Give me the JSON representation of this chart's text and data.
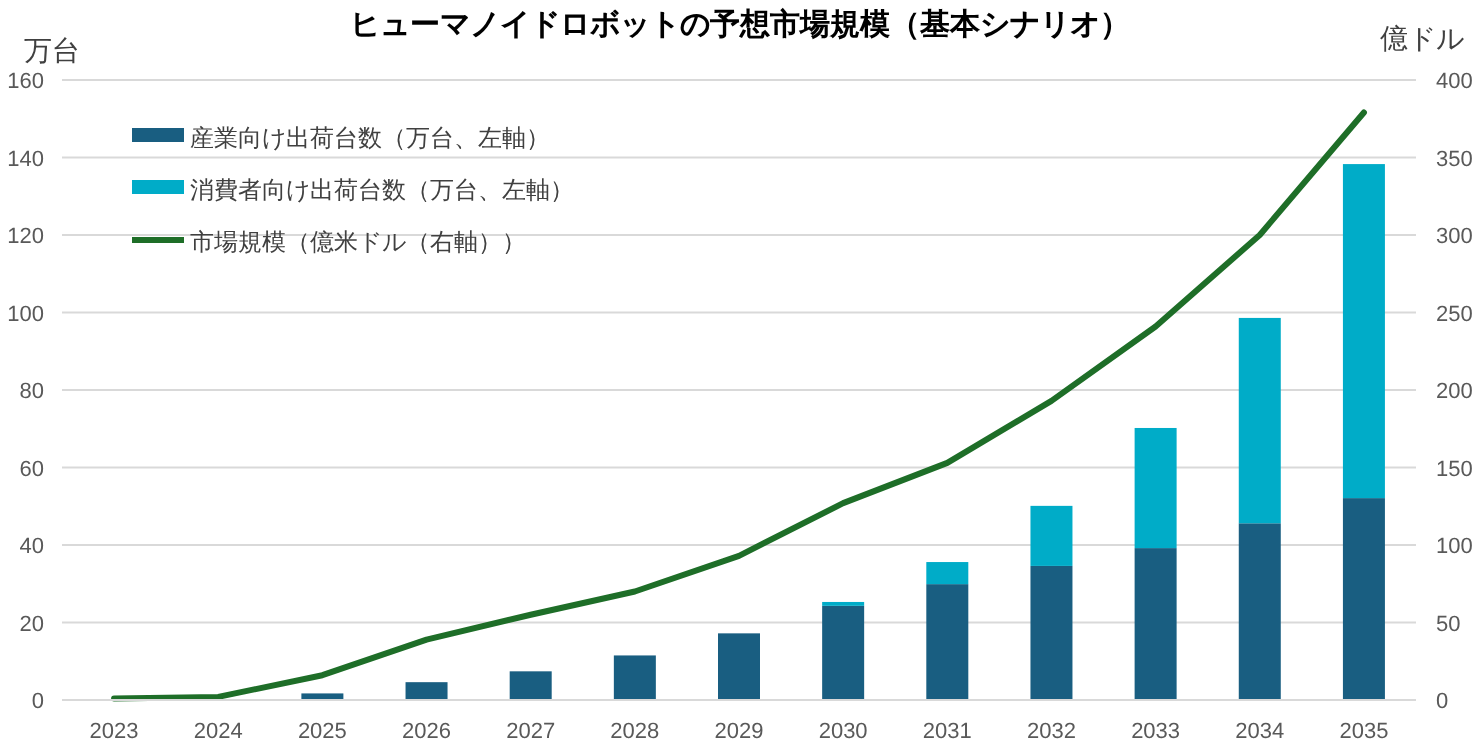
{
  "chart_data": {
    "type": "bar",
    "title": "ヒューマノイドロボットの予想市場規模（基本シナリオ）",
    "ylabel": "万台",
    "y2label": "億ドル",
    "categories": [
      "2023",
      "2024",
      "2025",
      "2026",
      "2027",
      "2028",
      "2029",
      "2030",
      "2031",
      "2032",
      "2033",
      "2034",
      "2035"
    ],
    "stacked": true,
    "series": [
      {
        "name": "産業向け出荷台数（万台、左軸）",
        "color": "#195e81",
        "values": [
          null,
          null,
          1.7,
          4.6,
          7.4,
          11.5,
          17.2,
          24.3,
          29.9,
          34.6,
          39.2,
          45.6,
          52.1
        ]
      },
      {
        "name": "消費者向け出荷台数（万台、左軸）",
        "color": "#00acc8",
        "values": [
          0,
          0,
          0,
          0,
          0,
          0,
          0,
          1.0,
          5.7,
          15.5,
          31,
          53,
          86.2
        ]
      },
      {
        "name": "市場規模（億米ドル（右軸））",
        "type": "line",
        "axis": "y2",
        "color": "#1e6e28",
        "values": [
          1,
          2,
          16,
          39,
          55,
          70,
          93,
          127,
          153,
          193,
          241,
          300,
          379
        ]
      }
    ],
    "ylim": [
      0,
      160
    ],
    "yticks": [
      0,
      20,
      40,
      60,
      80,
      100,
      120,
      140,
      160
    ],
    "y2lim": [
      0,
      400
    ],
    "y2ticks": [
      0,
      50,
      100,
      150,
      200,
      250,
      300,
      350,
      400
    ],
    "grid": "y",
    "legend": "top left"
  }
}
